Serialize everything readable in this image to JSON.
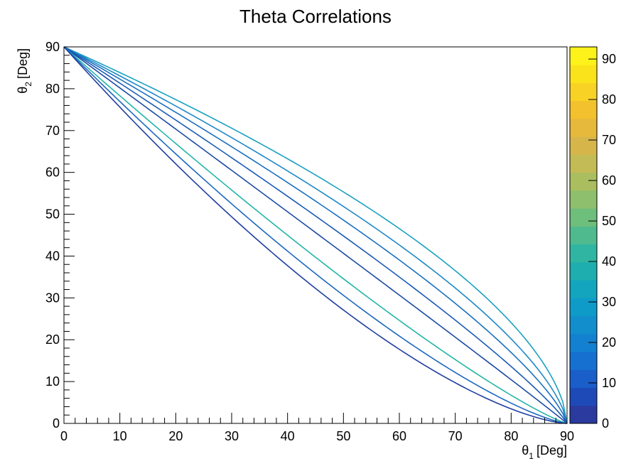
{
  "chart_data": {
    "type": "heatmap",
    "title": "Theta Correlations",
    "xlabel": {
      "symbol": "θ",
      "sub": "1",
      "unit": "[Deg]"
    },
    "ylabel": {
      "symbol": "θ",
      "sub": "2",
      "unit": "[Deg]"
    },
    "xlim": [
      0,
      90
    ],
    "ylim": [
      0,
      90
    ],
    "x_ticks": [
      0,
      10,
      20,
      30,
      40,
      50,
      60,
      70,
      80,
      90
    ],
    "y_ticks": [
      0,
      10,
      20,
      30,
      40,
      50,
      60,
      70,
      80,
      90
    ],
    "colorbar": {
      "range": [
        0,
        93
      ],
      "ticks": [
        0,
        10,
        20,
        30,
        40,
        50,
        60,
        70,
        80,
        90
      ],
      "colors": [
        "#2a3a9e",
        "#1e4ab8",
        "#1a5ec9",
        "#1670d0",
        "#1480d0",
        "#128ecc",
        "#0f9bc8",
        "#12a5bd",
        "#1eaeb0",
        "#30b5a2",
        "#4eba8e",
        "#6ebe7c",
        "#8dbf6c",
        "#aabe60",
        "#c3bb55",
        "#d6b64b",
        "#e6b83c",
        "#f2c12d",
        "#f8d224",
        "#fbe31c",
        "#fdf21a"
      ]
    },
    "series": [
      {
        "exponent": 0.6,
        "color": "#1aa0c0",
        "values_note": "upper curve"
      },
      {
        "exponent": 0.68,
        "color": "#1e88c8",
        "values_note": ""
      },
      {
        "exponent": 0.76,
        "color": "#1a70c0",
        "values_note": ""
      },
      {
        "exponent": 0.86,
        "color": "#1a5bb5",
        "values_note": ""
      },
      {
        "exponent": 0.98,
        "color": "#1d4aa5",
        "values_note": ""
      },
      {
        "exponent": 1.18,
        "color": "#22b5a8",
        "values_note": ""
      },
      {
        "exponent": 1.33,
        "color": "#1c68c0",
        "values_note": ""
      },
      {
        "exponent": 1.48,
        "color": "#203ea0",
        "values_note": "lower curve"
      }
    ]
  }
}
